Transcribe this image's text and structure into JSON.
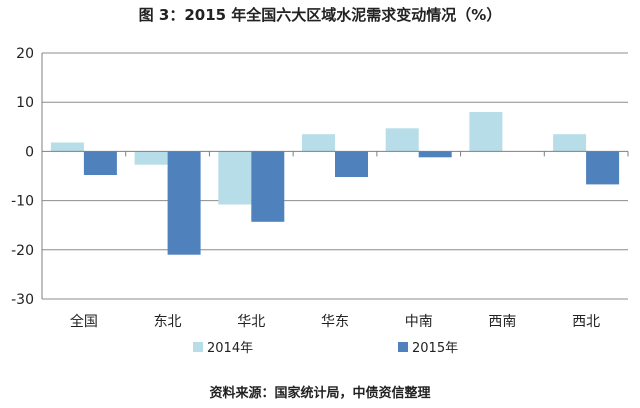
{
  "header": {
    "title": "图 3：2015 年全国六大区域水泥需求变动情况（%）"
  },
  "footer": {
    "source": "资料来源：国家统计局，中债资信整理"
  },
  "chart_data": {
    "type": "bar",
    "title": "图 3：2015 年全国六大区域水泥需求变动情况（%）",
    "xlabel": "",
    "ylabel": "",
    "ylim": [
      -30,
      20
    ],
    "yticks": [
      20,
      10,
      0,
      -10,
      -20,
      -30
    ],
    "grid": true,
    "legend_position": "bottom",
    "categories": [
      "全国",
      "东北",
      "华北",
      "华东",
      "中南",
      "西南",
      "西北"
    ],
    "series": [
      {
        "name": "2014年",
        "color": "#b7dde8",
        "values": [
          1.8,
          -2.7,
          -10.8,
          3.5,
          4.7,
          8.0,
          3.5
        ]
      },
      {
        "name": "2015年",
        "color": "#4f81bd",
        "values": [
          -4.8,
          -21.0,
          -14.3,
          -5.2,
          -1.2,
          0.0,
          -6.7
        ]
      }
    ]
  }
}
